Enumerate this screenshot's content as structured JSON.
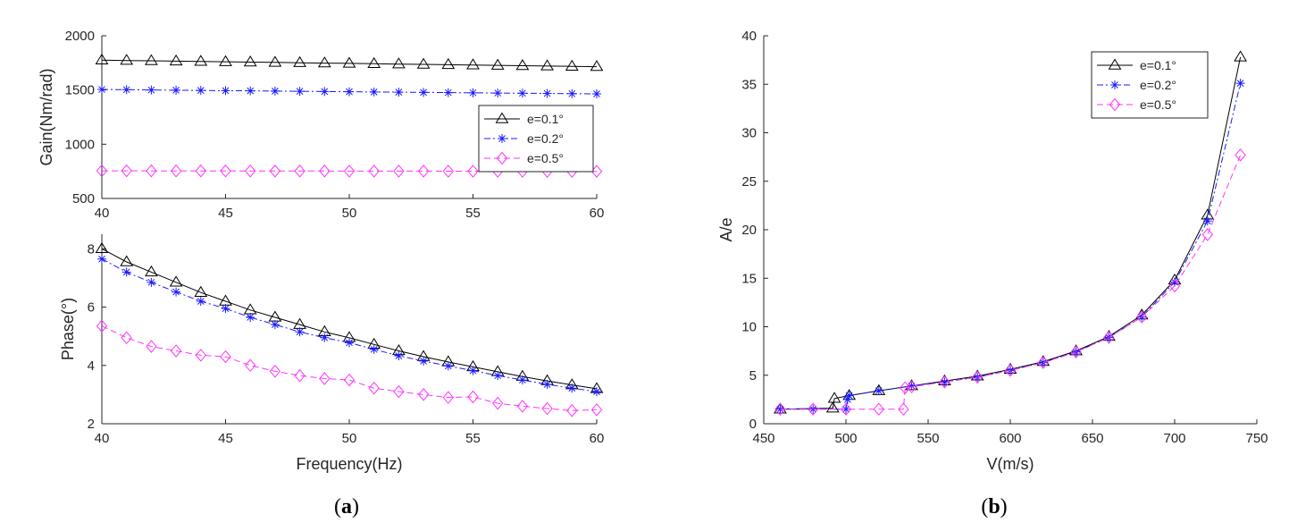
{
  "colors": {
    "e01": "#000000",
    "e02": "#1a1aff",
    "e05": "#ff33ff",
    "axis": "#262626",
    "background": "#ffffff"
  },
  "legend_entries": [
    "e=0.1°",
    "e=0.2°",
    "e=0.5°"
  ],
  "captions": {
    "a": "a",
    "b": "b",
    "open": "(",
    "close": ")"
  },
  "chart_data": [
    {
      "id": "a-gain",
      "type": "line",
      "title": "",
      "xlabel": "",
      "ylabel": "Gain(Nm/rad)",
      "xlim": [
        40,
        60
      ],
      "ylim": [
        500,
        2000
      ],
      "xticks": [
        40,
        45,
        50,
        55,
        60
      ],
      "yticks": [
        500,
        1000,
        1500,
        2000
      ],
      "legend": "right-middle",
      "x": [
        40,
        41,
        42,
        43,
        44,
        45,
        46,
        47,
        48,
        49,
        50,
        51,
        52,
        53,
        54,
        55,
        56,
        57,
        58,
        59,
        60
      ],
      "series": [
        {
          "name": "e=0.1°",
          "marker": "triangle",
          "dash": "solid",
          "values": [
            1775,
            1772,
            1769,
            1766,
            1763,
            1760,
            1757,
            1754,
            1751,
            1748,
            1745,
            1742,
            1739,
            1736,
            1733,
            1730,
            1727,
            1724,
            1721,
            1718,
            1715
          ]
        },
        {
          "name": "e=0.2°",
          "marker": "star",
          "dash": "dashdot",
          "values": [
            1505,
            1503,
            1500,
            1498,
            1496,
            1494,
            1492,
            1490,
            1488,
            1486,
            1484,
            1482,
            1480,
            1478,
            1476,
            1474,
            1472,
            1470,
            1468,
            1466,
            1464
          ]
        },
        {
          "name": "e=0.5°",
          "marker": "diamond",
          "dash": "dashed",
          "values": [
            755,
            755,
            754,
            754,
            754,
            754,
            753,
            753,
            753,
            753,
            752,
            752,
            752,
            752,
            751,
            751,
            751,
            751,
            750,
            750,
            750
          ]
        }
      ]
    },
    {
      "id": "a-phase",
      "type": "line",
      "title": "",
      "xlabel": "Frequency(Hz)",
      "ylabel": "Phase(°)",
      "xlim": [
        40,
        60
      ],
      "ylim": [
        2,
        8.5
      ],
      "xticks": [
        40,
        45,
        50,
        55,
        60
      ],
      "yticks": [
        2,
        4,
        6,
        8
      ],
      "legend": "none",
      "x": [
        40,
        41,
        42,
        43,
        44,
        45,
        46,
        47,
        48,
        49,
        50,
        51,
        52,
        53,
        54,
        55,
        56,
        57,
        58,
        59,
        60
      ],
      "series": [
        {
          "name": "e=0.1°",
          "marker": "triangle",
          "dash": "solid",
          "values": [
            8.0,
            7.55,
            7.2,
            6.85,
            6.5,
            6.2,
            5.9,
            5.65,
            5.4,
            5.15,
            4.95,
            4.72,
            4.5,
            4.3,
            4.12,
            3.95,
            3.78,
            3.62,
            3.47,
            3.33,
            3.2
          ]
        },
        {
          "name": "e=0.2°",
          "marker": "star",
          "dash": "dashdot",
          "values": [
            7.65,
            7.2,
            6.85,
            6.52,
            6.2,
            5.95,
            5.65,
            5.4,
            5.15,
            4.95,
            4.78,
            4.55,
            4.33,
            4.15,
            3.98,
            3.82,
            3.65,
            3.5,
            3.35,
            3.22,
            3.1
          ]
        },
        {
          "name": "e=0.5°",
          "marker": "diamond",
          "dash": "dashed",
          "values": [
            5.35,
            4.95,
            4.65,
            4.5,
            4.35,
            4.3,
            4.0,
            3.8,
            3.65,
            3.55,
            3.5,
            3.22,
            3.1,
            3.0,
            2.9,
            2.92,
            2.7,
            2.6,
            2.52,
            2.45,
            2.48
          ]
        }
      ]
    },
    {
      "id": "b",
      "type": "line",
      "title": "",
      "xlabel": "V(m/s)",
      "ylabel": "A/e",
      "xlim": [
        450,
        750
      ],
      "ylim": [
        0,
        40
      ],
      "xticks": [
        450,
        500,
        550,
        600,
        650,
        700,
        750
      ],
      "yticks": [
        0,
        5,
        10,
        15,
        20,
        25,
        30,
        35,
        40
      ],
      "legend": "top-right",
      "series": [
        {
          "name": "e=0.1°",
          "marker": "triangle",
          "dash": "solid",
          "x": [
            460,
            492,
            493,
            502,
            520,
            540,
            560,
            580,
            600,
            620,
            640,
            660,
            680,
            700,
            720,
            740
          ],
          "values": [
            1.5,
            1.6,
            2.6,
            2.9,
            3.4,
            3.9,
            4.4,
            4.9,
            5.6,
            6.4,
            7.5,
            9.0,
            11.2,
            14.8,
            21.5,
            37.8
          ]
        },
        {
          "name": "e=0.2°",
          "marker": "star",
          "dash": "dashdot",
          "x": [
            460,
            480,
            500,
            501,
            502,
            520,
            540,
            560,
            580,
            600,
            620,
            640,
            660,
            680,
            700,
            720,
            740
          ],
          "values": [
            1.5,
            1.5,
            1.5,
            2.5,
            2.9,
            3.4,
            3.9,
            4.3,
            4.8,
            5.5,
            6.3,
            7.4,
            8.9,
            11.0,
            14.6,
            20.9,
            35.1
          ]
        },
        {
          "name": "e=0.5°",
          "marker": "diamond",
          "dash": "dashed",
          "x": [
            460,
            480,
            500,
            520,
            535,
            536,
            540,
            560,
            580,
            600,
            620,
            640,
            660,
            680,
            700,
            720,
            740
          ],
          "values": [
            1.5,
            1.5,
            1.5,
            1.5,
            1.5,
            3.7,
            3.8,
            4.3,
            4.8,
            5.5,
            6.3,
            7.4,
            8.9,
            11.0,
            14.2,
            19.5,
            27.7
          ]
        }
      ]
    }
  ]
}
